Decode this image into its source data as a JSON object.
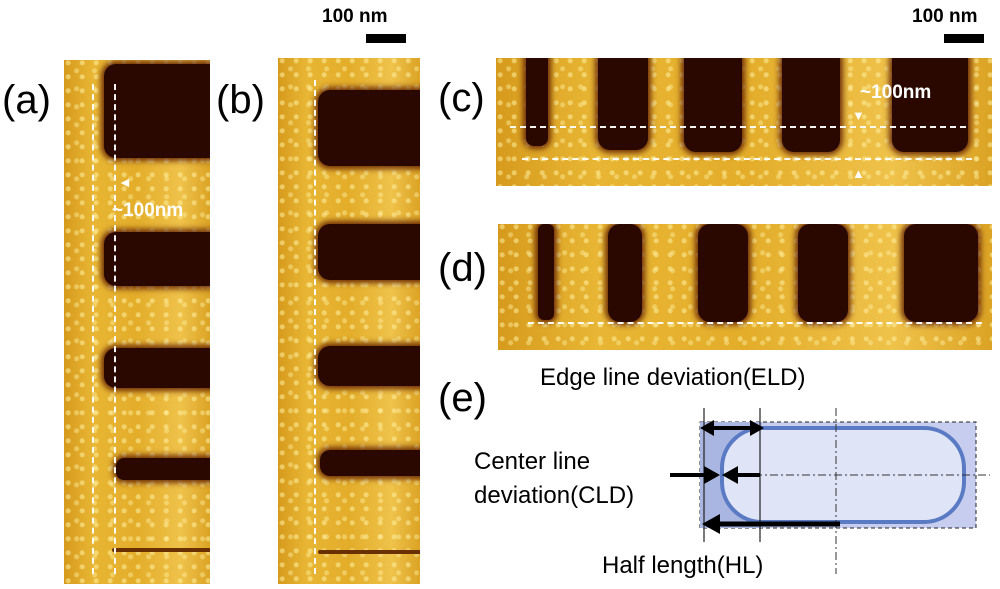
{
  "panels": {
    "a": "(a)",
    "b": "(b)",
    "c": "(c)",
    "d": "(d)",
    "e": "(e)"
  },
  "annotations": {
    "a_gap": "~100nm",
    "c_gap": "~100nm"
  },
  "scale_bars": {
    "left": "100 nm",
    "right": "100 nm"
  },
  "diagram": {
    "edge_line_deviation": "Edge line deviation(ELD)",
    "center_line_line1": "Center line",
    "center_line_line2": "deviation(CLD)",
    "half_length": "Half length(HL)"
  },
  "colors": {
    "afm_gold": "#e3ad2a",
    "afm_dark": "#2a0800",
    "diagram_fill": "#c6cdee",
    "diagram_shape_stroke": "#5b7ac4"
  }
}
